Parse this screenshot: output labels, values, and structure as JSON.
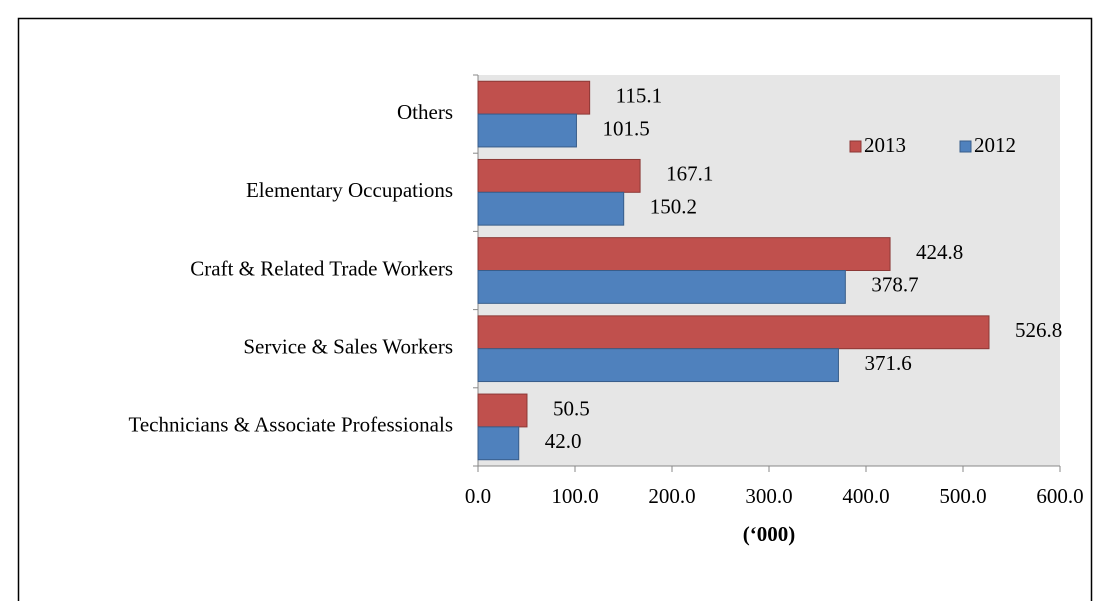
{
  "chart_data": {
    "type": "hbar",
    "categories": [
      "Others",
      "Elementary Occupations",
      "Craft & Related Trade Workers",
      "Service & Sales Workers",
      "Technicians & Associate Professionals"
    ],
    "series": [
      {
        "name": "2013",
        "color": "#c0504d",
        "values": [
          115.1,
          167.1,
          424.8,
          526.8,
          50.5
        ],
        "value_labels": [
          "115.1",
          "167.1",
          "424.8",
          "526.8",
          "50.5"
        ]
      },
      {
        "name": "2012",
        "color": "#4f81bd",
        "values": [
          101.5,
          150.2,
          378.7,
          371.6,
          42.0
        ],
        "value_labels": [
          "101.5",
          "150.2",
          "378.7",
          "371.6",
          "42.0"
        ]
      }
    ],
    "xlabel": "(‘000)",
    "xlim": [
      0,
      600
    ],
    "xticks": [
      {
        "value": 0,
        "label": "0.0"
      },
      {
        "value": 100,
        "label": "100.0"
      },
      {
        "value": 200,
        "label": "200.0"
      },
      {
        "value": 300,
        "label": "300.0"
      },
      {
        "value": 400,
        "label": "400.0"
      },
      {
        "value": 500,
        "label": "500.0"
      },
      {
        "value": 600,
        "label": "600.0"
      }
    ],
    "plot_background": "#e6e6e6"
  }
}
